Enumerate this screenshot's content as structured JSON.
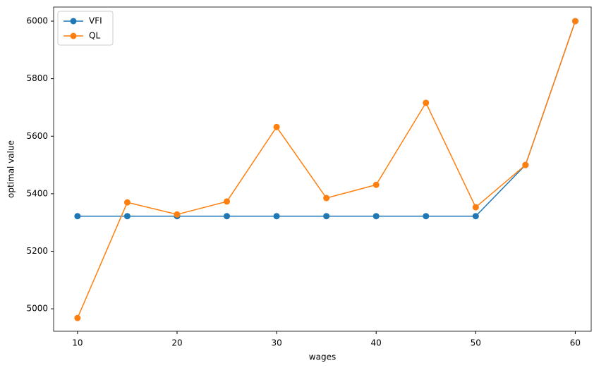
{
  "chart_data": {
    "type": "line",
    "xlabel": "wages",
    "ylabel": "optimal value",
    "x": [
      10,
      15,
      20,
      25,
      30,
      35,
      40,
      45,
      50,
      55,
      60
    ],
    "series": [
      {
        "name": "VFI",
        "color": "#1f77b4",
        "values": [
          5322,
          5322,
          5322,
          5322,
          5322,
          5322,
          5322,
          5322,
          5322,
          5500,
          6000
        ]
      },
      {
        "name": "QL",
        "color": "#ff7f0e",
        "values": [
          4968,
          5370,
          5328,
          5373,
          5632,
          5385,
          5431,
          5716,
          5353,
          5500,
          6000
        ]
      }
    ],
    "xlim": [
      7.6,
      61.6
    ],
    "xticks": [
      10,
      20,
      30,
      40,
      50,
      60
    ],
    "ylim": [
      4922,
      6049
    ],
    "yticks": [
      5000,
      5200,
      5400,
      5600,
      5800,
      6000
    ],
    "grid": false,
    "legend": "upper left",
    "marker": "circle"
  }
}
